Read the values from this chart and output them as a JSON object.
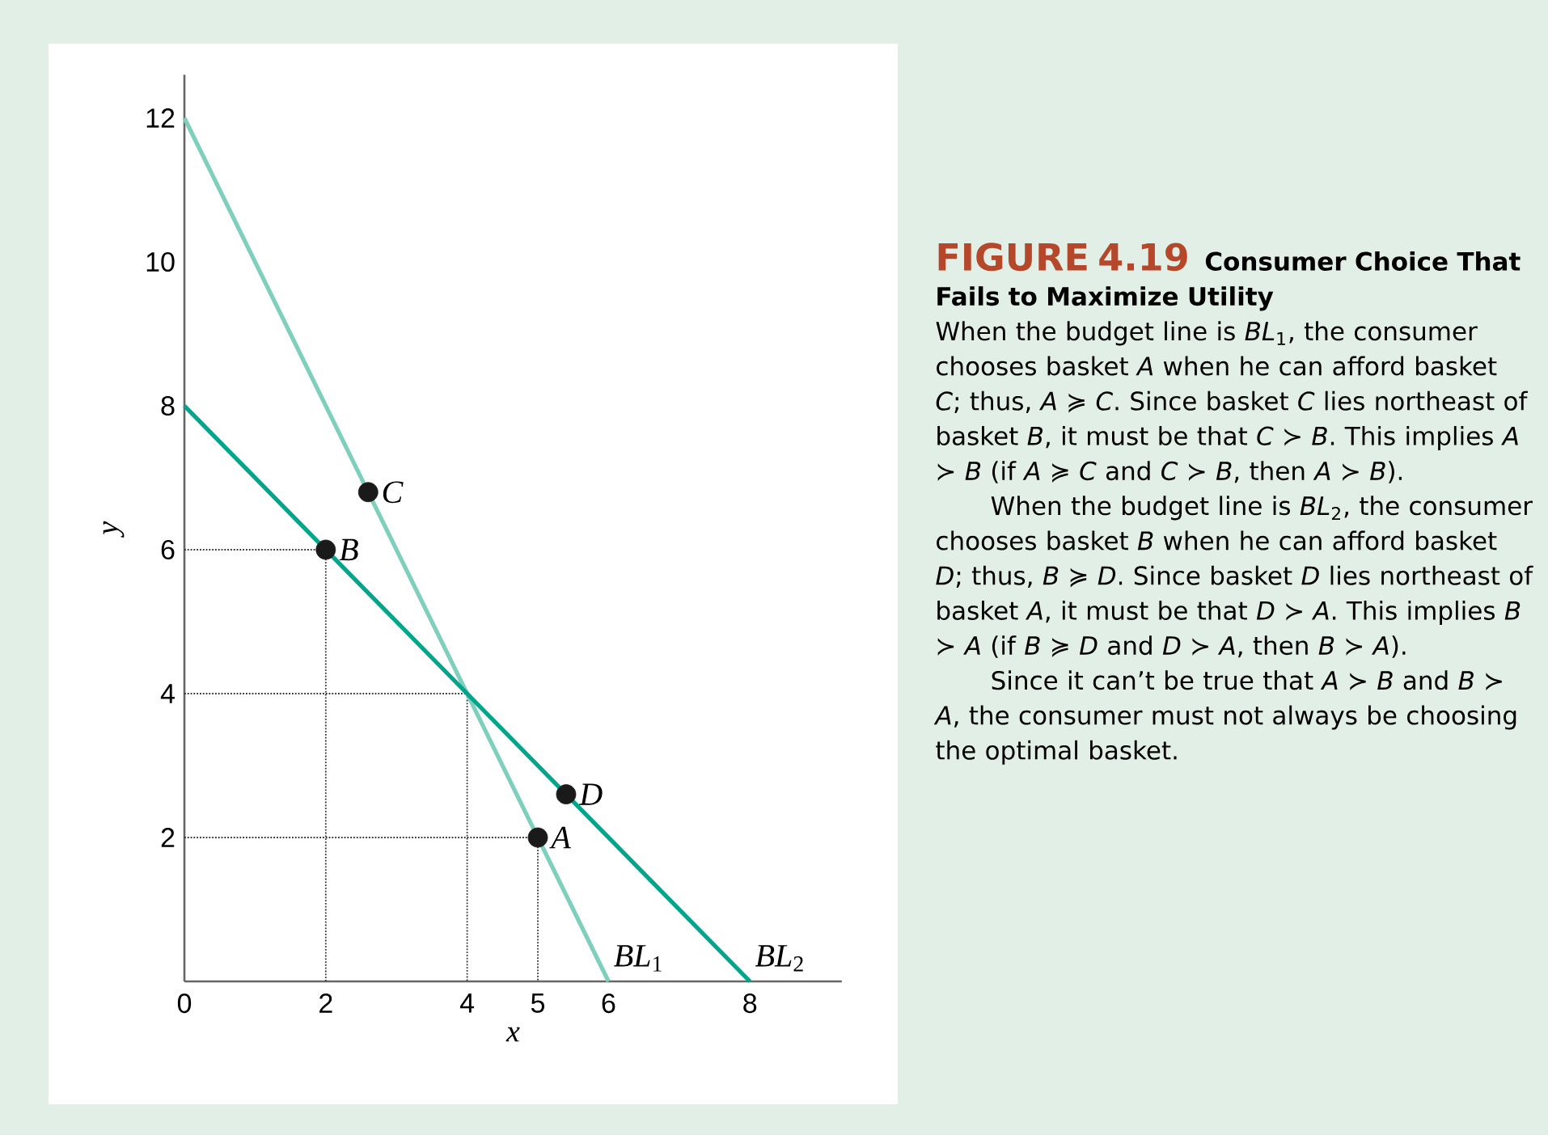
{
  "chart_data": {
    "type": "line",
    "title": "FIGURE 4.19",
    "subtitle": "Consumer Choice That Fails to Maximize Utility",
    "xlabel": "x",
    "ylabel": "y",
    "xlim": [
      0,
      9.3
    ],
    "ylim": [
      0,
      12.6
    ],
    "xticks": [
      0,
      2,
      4,
      5,
      6,
      8
    ],
    "yticks": [
      2,
      4,
      6,
      8,
      10,
      12
    ],
    "series": [
      {
        "line_style": "dotted",
        "color": "#333333",
        "x": [
          0,
          2,
          2
        ],
        "values": [
          6,
          6,
          0
        ]
      },
      {
        "line_style": "dotted",
        "color": "#333333",
        "x": [
          0,
          4,
          4
        ],
        "values": [
          4,
          4,
          0
        ]
      },
      {
        "line_style": "dotted",
        "color": "#333333",
        "x": [
          0,
          5,
          5
        ],
        "values": [
          2,
          2,
          0
        ]
      },
      {
        "name": "*BL*$_{1}$",
        "color": "#7fcfbd",
        "line_style": "solid",
        "x": [
          0,
          6
        ],
        "values": [
          12,
          0
        ]
      },
      {
        "name": "*BL*$_{2}$",
        "color": "#00a58c",
        "line_style": "solid",
        "x": [
          0,
          8
        ],
        "values": [
          8,
          0
        ]
      },
      {
        "type": "scatter",
        "marker": "circle",
        "color": "#1a1a1a",
        "x": [
          5,
          2,
          2.6,
          5.4
        ],
        "values": [
          2,
          6,
          6.8,
          2.6
        ]
      }
    ],
    "annotations": [
      {
        "text": "*A*",
        "x": 5,
        "y": 2
      },
      {
        "text": "*B*",
        "x": 2,
        "y": 6
      },
      {
        "text": "*C*",
        "x": 2.6,
        "y": 6.8
      },
      {
        "text": "*D*",
        "x": 5.4,
        "y": 2.6
      },
      "When the budget line is *BL*$_{1}$, the consumer chooses basket *A* when he can afford basket *C*; thus, *A* ≽ *C*. Since basket *C* lies northeast of basket *B*, it must be that *C* ≻ *B*. This implies *A* ≻ *B* (if *A* ≽ *C* and *C* ≻ *B*, then *A* ≻ *B*).",
      "When the budget line is *BL*$_{2}$, the consumer chooses basket *B* when he can afford basket *D*; thus, *B* ≽ *D*. Since basket *D* lies northeast of basket *A*, it must be that *D* ≻ *A*. This implies *B* ≻ *A* (if *B* ≽ *D* and *D* ≻ *A*, then *B* ≻ *A*).",
      "Since it can’t be true that *A* ≻ *B* and *B* ≻ *A*, the consumer must not always be choosing the optimal basket."
    ]
  }
}
